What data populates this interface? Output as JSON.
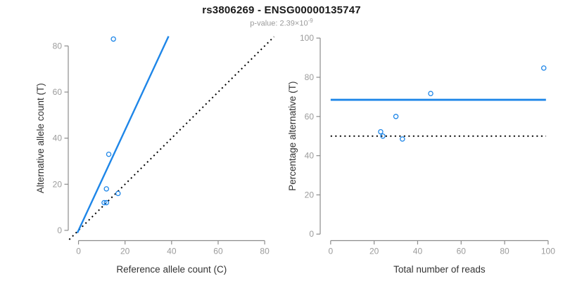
{
  "header": {
    "title": "rs3806269 - ENSG00000135747",
    "p_value_prefix": "p-value: 2.39×10",
    "p_value_exponent": "-9"
  },
  "colors": {
    "accent_blue": "#1E86E8",
    "dotted_black": "#000000",
    "axis_gray": "#8C8C8C",
    "tick_label_gray": "#9B9B9B",
    "axis_title_color": "#333333",
    "title_color": "#1A1A1A",
    "subtitle_gray": "#9B9B9B"
  },
  "chart_data": [
    {
      "type": "scatter",
      "name": "allele-counts-scatter",
      "xlabel": "Reference allele count (C)",
      "ylabel": "Alternative allele count (T)",
      "x_ticks": [
        0,
        20,
        40,
        60,
        80
      ],
      "y_ticks": [
        0,
        20,
        40,
        60,
        80
      ],
      "xlim": [
        -4.4,
        84.2
      ],
      "ylim": [
        -4.6,
        84.7
      ],
      "grid": false,
      "legend": null,
      "points": [
        [
          11,
          12
        ],
        [
          12,
          12
        ],
        [
          12,
          18
        ],
        [
          13,
          33
        ],
        [
          15,
          83
        ],
        [
          17,
          16
        ]
      ],
      "lines": [
        {
          "name": "identity-line",
          "style": "dotted",
          "color_key": "dotted_black",
          "width": 2,
          "from": [
            -4,
            -4
          ],
          "to": [
            84,
            84
          ]
        },
        {
          "name": "fit-line",
          "style": "solid",
          "color_key": "accent_blue",
          "width": 2.4,
          "from": [
            -0.5,
            -1.1
          ],
          "to": [
            38.7,
            84.2
          ]
        }
      ]
    },
    {
      "type": "scatter",
      "name": "percentage-vs-reads-scatter",
      "xlabel": "Total number of reads",
      "ylabel": "Percentage alternative (T)",
      "x_ticks": [
        0,
        20,
        40,
        60,
        80,
        100
      ],
      "y_ticks": [
        0,
        20,
        40,
        60,
        80,
        100
      ],
      "xlim": [
        -4.8,
        103.6
      ],
      "ylim": [
        -3.5,
        101.5
      ],
      "grid": false,
      "legend": null,
      "points": [
        [
          23,
          52.2
        ],
        [
          24,
          50
        ],
        [
          30,
          60
        ],
        [
          33,
          48.5
        ],
        [
          46,
          71.7
        ],
        [
          98,
          84.7
        ]
      ],
      "lines": [
        {
          "name": "expected-50-percent-line",
          "style": "dotted",
          "color_key": "dotted_black",
          "width": 2,
          "from": [
            0,
            50
          ],
          "to": [
            99,
            50
          ]
        },
        {
          "name": "observed-percentage-line",
          "style": "solid",
          "color_key": "accent_blue",
          "width": 2.8,
          "from": [
            0,
            68.5
          ],
          "to": [
            99,
            68.5
          ]
        }
      ]
    }
  ]
}
